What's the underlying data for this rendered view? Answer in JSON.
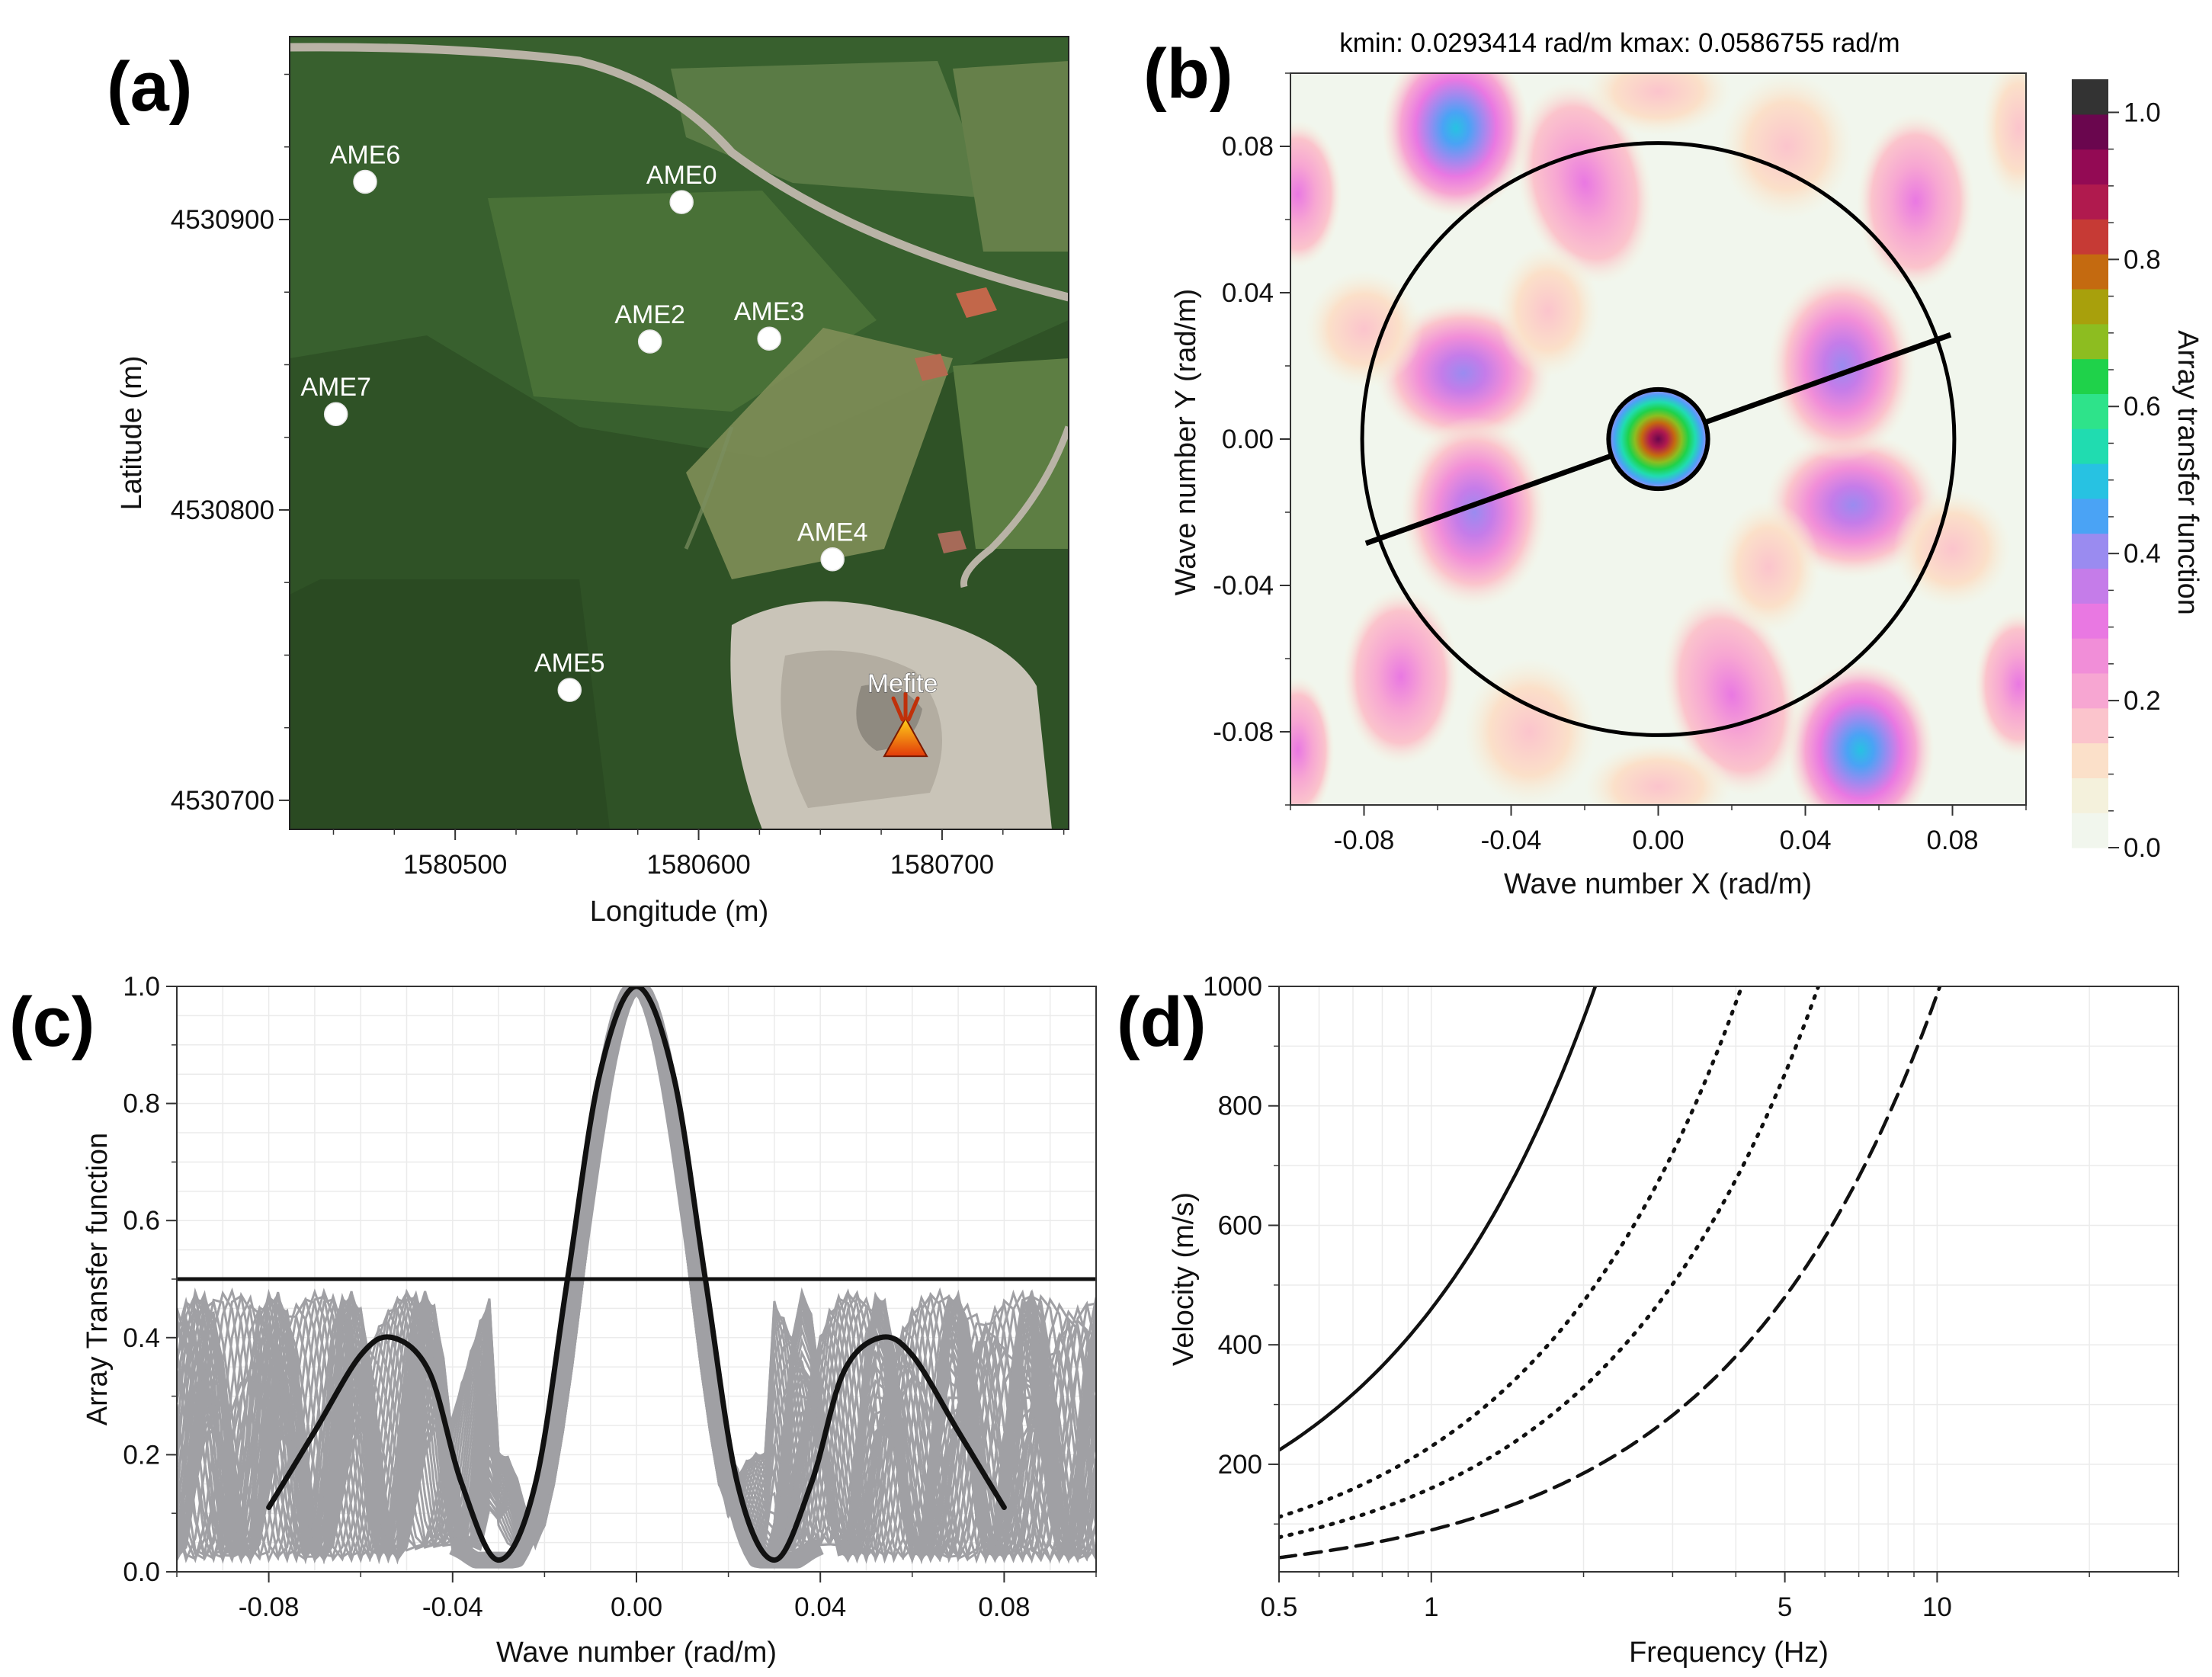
{
  "panels": {
    "a": "(a)",
    "b": "(b)",
    "c": "(c)",
    "d": "(d)"
  },
  "colors": {
    "satellite_dark": "#2c4a24",
    "satellite_mid": "#3f6a30",
    "field": "#6f8a4d",
    "crater": "#c9c4b8",
    "road": "#b9b3a6",
    "gray_curves": "#a0a0a4",
    "black": "#111111"
  },
  "chart_data": [
    {
      "id": "a",
      "type": "scatter",
      "title": "",
      "xlabel": "Longitude (m)",
      "ylabel": "Latitude (m)",
      "xlim": [
        1580432,
        1580752
      ],
      "ylim": [
        4530690,
        4530963
      ],
      "xticks": [
        1580500,
        1580600,
        1580700
      ],
      "yticks": [
        4530700,
        4530800,
        4530900
      ],
      "stations": [
        {
          "name": "AME6",
          "x": 1580463,
          "y": 4530913
        },
        {
          "name": "AME0",
          "x": 1580593,
          "y": 4530906
        },
        {
          "name": "AME2",
          "x": 1580580,
          "y": 4530858
        },
        {
          "name": "AME3",
          "x": 1580629,
          "y": 4530859
        },
        {
          "name": "AME7",
          "x": 1580451,
          "y": 4530833
        },
        {
          "name": "AME4",
          "x": 1580655,
          "y": 4530783
        },
        {
          "name": "AME5",
          "x": 1580547,
          "y": 4530738
        }
      ],
      "source": {
        "name": "Mefite",
        "x": 1580685,
        "y": 4530722
      }
    },
    {
      "id": "b",
      "type": "heatmap",
      "title": "kmin: 0.0293414 rad/m kmax: 0.0586755 rad/m",
      "xlabel": "Wave number X (rad/m)",
      "ylabel": "Wave number Y (rad/m)",
      "colorbar_label": "Array transfer function",
      "xlim": [
        -0.1,
        0.1
      ],
      "ylim": [
        -0.1,
        0.1
      ],
      "xticks": [
        "-0.08",
        "-0.04",
        "0.00",
        "0.04",
        "0.08"
      ],
      "yticks": [
        "0.08",
        "0.04",
        "0.00",
        "-0.04",
        "-0.08"
      ],
      "colorbar_ticks": [
        "1.0",
        "0.8",
        "0.6",
        "0.4",
        "0.2",
        "0.0"
      ],
      "colorbar_levels": [
        "#f1f6ed",
        "#f4f1dc",
        "#fbe0c9",
        "#fbc4cc",
        "#f7a6d2",
        "#f18ed8",
        "#e978e2",
        "#c57ce9",
        "#9a8bf0",
        "#4aa3f5",
        "#27c2e2",
        "#20dcb0",
        "#2ee38a",
        "#1fd24a",
        "#8dbd20",
        "#a8a00c",
        "#c46a10",
        "#c63a35",
        "#b01a4e",
        "#930a54",
        "#6a064e",
        "#333333"
      ],
      "kmin_circle_radius": 0.0135,
      "kmax_circle_radius": 0.0805,
      "profile_line": {
        "x1": -0.0795,
        "y1": -0.0285,
        "x2": 0.0795,
        "y2": 0.0285
      }
    },
    {
      "id": "c",
      "type": "line",
      "title": "",
      "xlabel": "Wave number (rad/m)",
      "ylabel": "Array Transfer function",
      "xlim": [
        -0.1,
        0.1
      ],
      "ylim": [
        0.0,
        1.0
      ],
      "xticks": [
        "-0.08",
        "-0.04",
        "0.00",
        "0.04",
        "0.08"
      ],
      "yticks": [
        "0.0",
        "0.2",
        "0.4",
        "0.6",
        "0.8",
        "1.0"
      ],
      "threshold": 0.5,
      "highlight_series": {
        "name": "selected direction",
        "x": [
          -0.08,
          -0.07,
          -0.06,
          -0.053,
          -0.045,
          -0.038,
          -0.03,
          -0.022,
          -0.015,
          -0.008,
          0.0,
          0.008,
          0.015,
          0.022,
          0.03,
          0.038,
          0.045,
          0.053,
          0.06,
          0.07,
          0.08
        ],
        "y": [
          0.11,
          0.24,
          0.37,
          0.4,
          0.34,
          0.15,
          0.02,
          0.15,
          0.5,
          0.85,
          1.0,
          0.85,
          0.5,
          0.15,
          0.02,
          0.15,
          0.34,
          0.4,
          0.37,
          0.24,
          0.11
        ]
      },
      "other_directions": "gray family of transfer-function curves for all azimuths"
    },
    {
      "id": "d",
      "type": "line",
      "title": "",
      "xlabel": "Frequency (Hz)",
      "ylabel": "Velocity (m/s)",
      "xscale": "log",
      "xlim": [
        0.5,
        30
      ],
      "ylim": [
        20,
        1000
      ],
      "xticks": [
        "0.5",
        "1",
        "5",
        "10"
      ],
      "yticks": [
        "200",
        "400",
        "600",
        "800",
        "1000"
      ],
      "series": [
        {
          "name": "solid",
          "style": "solid",
          "coef": 460
        },
        {
          "name": "dotted-1",
          "style": "dotted",
          "coef": 230
        },
        {
          "name": "dotted-2",
          "style": "dotted",
          "coef": 160
        },
        {
          "name": "dashed",
          "style": "dashed",
          "coef": 90
        }
      ]
    }
  ]
}
